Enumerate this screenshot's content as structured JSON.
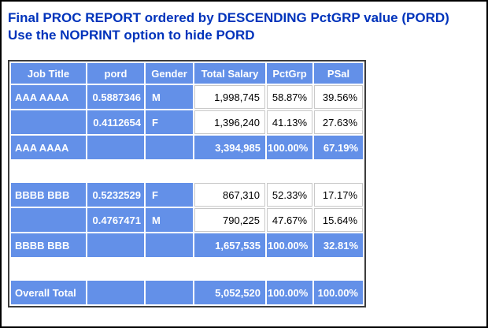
{
  "page": {
    "title_line1": "Final PROC REPORT ordered by DESCENDING PctGRP value (PORD)",
    "title_line2": "Use the NOPRINT option to hide PORD"
  },
  "colors": {
    "title_blue": "#0033BB",
    "cell_blue": "#6390E8",
    "white_cell_border": "#c8c8c8",
    "table_border": "#3c3c3c",
    "page_border": "#000000"
  },
  "table": {
    "columns": [
      "Job Title",
      "pord",
      "Gender",
      "Total Salary",
      "PctGrp",
      "PSal"
    ],
    "rows": [
      {
        "type": "detail",
        "cells": [
          "AAA AAAA",
          "0.5887346",
          "M",
          "1,998,745",
          "58.87%",
          "39.56%"
        ]
      },
      {
        "type": "detail",
        "cells": [
          "",
          "0.4112654",
          "F",
          "1,396,240",
          "41.13%",
          "27.63%"
        ]
      },
      {
        "type": "summary",
        "cells": [
          "AAA AAAA",
          "",
          "",
          "3,394,985",
          "100.00%",
          "67.19%"
        ]
      },
      {
        "type": "blank",
        "cells": []
      },
      {
        "type": "detail",
        "cells": [
          "BBBB BBB",
          "0.5232529",
          "F",
          "867,310",
          "52.33%",
          "17.17%"
        ]
      },
      {
        "type": "detail",
        "cells": [
          "",
          "0.4767471",
          "M",
          "790,225",
          "47.67%",
          "15.64%"
        ]
      },
      {
        "type": "summary",
        "cells": [
          "BBBB BBB",
          "",
          "",
          "1,657,535",
          "100.00%",
          "32.81%"
        ]
      },
      {
        "type": "blank",
        "cells": []
      },
      {
        "type": "summary",
        "cells": [
          "Overall Total",
          "",
          "",
          "5,052,520",
          "100.00%",
          "100.00%"
        ]
      }
    ]
  }
}
